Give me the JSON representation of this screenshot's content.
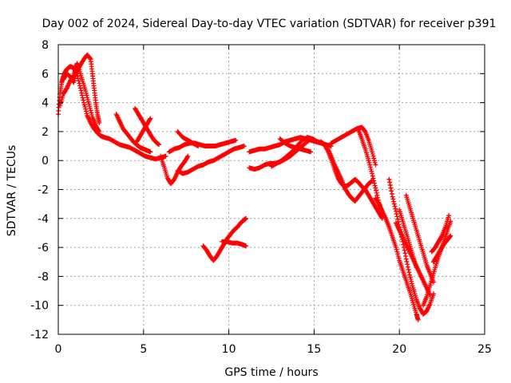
{
  "chart_data": {
    "type": "scatter",
    "title": "Day 002 of 2024, Sidereal Day-to-day VTEC variation (SDTVAR) for receiver p391",
    "xlabel": "GPS time / hours",
    "ylabel": "SDTVAR / TECUs",
    "xlim": [
      0,
      25
    ],
    "ylim": [
      -12,
      8
    ],
    "xticks": [
      "0",
      "5",
      "10",
      "15",
      "20",
      "25"
    ],
    "yticks": [
      "-12",
      "-10",
      "-8",
      "-6",
      "-4",
      "-2",
      "0",
      "2",
      "4",
      "6",
      "8"
    ],
    "grid": true,
    "legend": "none",
    "marker": "plus",
    "color": "#ff0000",
    "series": [
      {
        "x": [
          0.0,
          0.1,
          0.2,
          0.3,
          0.4,
          0.5,
          0.7,
          0.9,
          1.1,
          1.3,
          1.5,
          1.7,
          1.9,
          2.1,
          2.3,
          2.5,
          2.7,
          3.0,
          3.3,
          3.6,
          3.9,
          4.2,
          4.5,
          4.8,
          5.1,
          5.4,
          5.7,
          6.0,
          6.3
        ],
        "y": [
          3.2,
          4.6,
          5.4,
          5.8,
          6.1,
          6.3,
          6.5,
          6.4,
          6.0,
          5.0,
          4.0,
          3.1,
          2.6,
          2.2,
          1.9,
          1.7,
          1.6,
          1.5,
          1.3,
          1.1,
          1.0,
          0.9,
          0.7,
          0.5,
          0.3,
          0.2,
          0.1,
          0.2,
          0.3
        ]
      },
      {
        "x": [
          0.3,
          0.5,
          0.7,
          0.9,
          1.1,
          1.3,
          1.5,
          1.7,
          1.9,
          2.0,
          2.1,
          2.2,
          2.3,
          2.4
        ],
        "y": [
          5.6,
          6.0,
          5.8,
          5.4,
          6.2,
          6.6,
          7.0,
          7.3,
          7.0,
          6.0,
          5.0,
          4.0,
          3.2,
          2.6
        ]
      },
      {
        "x": [
          0.1,
          0.3,
          0.5,
          0.7,
          0.9,
          1.0,
          1.1,
          1.2,
          1.4,
          1.6,
          1.8,
          2.0,
          2.2,
          2.4
        ],
        "y": [
          3.8,
          4.6,
          5.0,
          5.5,
          5.8,
          6.3,
          6.7,
          6.4,
          5.6,
          4.8,
          3.9,
          3.0,
          2.4,
          2.0
        ]
      },
      {
        "x": [
          3.4,
          3.6,
          3.8,
          4.0,
          4.2,
          4.4,
          4.6,
          4.8,
          5.0,
          5.2,
          5.4
        ],
        "y": [
          3.2,
          2.7,
          2.2,
          1.9,
          1.6,
          1.3,
          1.1,
          0.9,
          0.8,
          0.7,
          0.6
        ]
      },
      {
        "x": [
          4.5,
          4.7,
          4.9,
          5.1,
          5.3,
          5.5,
          5.7,
          5.9
        ],
        "y": [
          3.6,
          3.2,
          2.8,
          2.4,
          2.0,
          1.6,
          1.3,
          1.1
        ]
      },
      {
        "x": [
          4.6,
          4.8,
          5.0,
          5.2,
          5.4
        ],
        "y": [
          1.3,
          1.7,
          2.1,
          2.5,
          2.9
        ]
      },
      {
        "x": [
          6.0,
          6.2,
          6.4,
          6.6,
          6.8,
          7.0,
          7.2,
          7.4,
          7.6
        ],
        "y": [
          0.3,
          -0.4,
          -1.2,
          -1.6,
          -1.3,
          -0.8,
          -0.4,
          -0.1,
          0.3
        ]
      },
      {
        "x": [
          6.5,
          6.8,
          7.1,
          7.4,
          7.7,
          8.0,
          8.3,
          8.6,
          8.9,
          9.2,
          9.5,
          9.8,
          10.1,
          10.4
        ],
        "y": [
          0.6,
          0.8,
          0.9,
          1.1,
          1.2,
          1.2,
          1.1,
          1.0,
          1.0,
          1.0,
          1.1,
          1.2,
          1.3,
          1.4
        ]
      },
      {
        "x": [
          7.0,
          7.3,
          7.6,
          7.9,
          8.2,
          8.5,
          8.8,
          9.1,
          9.4,
          9.7,
          10.0,
          10.3,
          10.6,
          10.9
        ],
        "y": [
          -0.7,
          -0.9,
          -0.8,
          -0.6,
          -0.4,
          -0.3,
          -0.1,
          0.0,
          0.2,
          0.4,
          0.6,
          0.8,
          0.9,
          1.0
        ]
      },
      {
        "x": [
          7.0,
          7.3,
          7.6,
          7.9,
          8.2
        ],
        "y": [
          2.0,
          1.6,
          1.4,
          1.2,
          1.0
        ]
      },
      {
        "x": [
          8.5,
          8.7,
          8.9,
          9.1,
          9.3,
          9.5,
          9.7,
          9.9,
          10.1,
          10.3,
          10.5,
          10.7,
          10.9,
          11.0
        ],
        "y": [
          -5.9,
          -6.2,
          -6.6,
          -6.9,
          -6.6,
          -6.2,
          -5.8,
          -5.4,
          -5.1,
          -4.8,
          -4.6,
          -4.3,
          -4.1,
          -4.0
        ]
      },
      {
        "x": [
          9.6,
          9.9,
          10.2,
          10.5,
          10.8,
          11.0
        ],
        "y": [
          -5.6,
          -5.6,
          -5.7,
          -5.7,
          -5.8,
          -5.9
        ]
      },
      {
        "x": [
          11.2,
          11.5,
          11.8,
          12.1,
          12.4,
          12.7,
          13.0,
          13.3,
          13.6,
          13.9,
          14.2,
          14.5,
          14.8,
          15.1,
          15.4,
          15.7,
          16.0
        ],
        "y": [
          0.6,
          0.7,
          0.8,
          0.8,
          0.9,
          1.0,
          1.1,
          1.3,
          1.4,
          1.5,
          1.6,
          1.5,
          1.4,
          1.3,
          1.2,
          1.1,
          1.0
        ]
      },
      {
        "x": [
          11.2,
          11.5,
          11.8,
          12.1,
          12.4,
          12.7,
          13.0,
          13.3,
          13.6,
          13.9,
          14.2,
          14.5,
          14.8
        ],
        "y": [
          -0.5,
          -0.6,
          -0.5,
          -0.3,
          -0.2,
          -0.2,
          -0.1,
          0.1,
          0.3,
          0.6,
          0.9,
          1.2,
          1.5
        ]
      },
      {
        "x": [
          12.5,
          12.8,
          13.1,
          13.4,
          13.7,
          14.0,
          14.3,
          14.6,
          14.9,
          15.2,
          15.5
        ],
        "y": [
          -0.4,
          -0.2,
          0.0,
          0.3,
          0.6,
          1.0,
          1.4,
          1.6,
          1.5,
          1.3,
          1.2
        ]
      },
      {
        "x": [
          13.0,
          13.3,
          13.6,
          13.9,
          14.2,
          14.5,
          14.8
        ],
        "y": [
          1.5,
          1.2,
          1.0,
          0.9,
          0.8,
          0.7,
          0.6
        ]
      },
      {
        "x": [
          15.4,
          15.6,
          15.8,
          16.0,
          16.2,
          16.4,
          16.6,
          16.8,
          17.0,
          17.2,
          17.4,
          17.6,
          17.8,
          18.0,
          18.2,
          18.4,
          18.6,
          18.8,
          19.0
        ],
        "y": [
          1.3,
          1.1,
          0.7,
          0.1,
          -0.6,
          -1.2,
          -1.6,
          -1.8,
          -1.7,
          -1.5,
          -1.3,
          -1.5,
          -1.8,
          -2.0,
          -2.4,
          -2.8,
          -3.2,
          -3.6,
          -4.0
        ]
      },
      {
        "x": [
          15.8,
          16.0,
          16.2,
          16.4,
          16.6,
          16.8,
          17.0,
          17.2,
          17.4,
          17.6,
          17.8,
          18.0,
          18.2,
          18.4
        ],
        "y": [
          0.8,
          0.3,
          -0.3,
          -0.8,
          -1.3,
          -1.9,
          -2.3,
          -2.6,
          -2.8,
          -2.5,
          -2.2,
          -1.9,
          -1.6,
          -1.4
        ]
      },
      {
        "x": [
          16.0,
          16.3,
          16.6,
          16.9,
          17.2,
          17.5,
          17.8,
          18.0,
          18.2,
          18.4,
          18.6
        ],
        "y": [
          1.2,
          1.4,
          1.6,
          1.8,
          2.0,
          2.2,
          2.3,
          2.0,
          1.4,
          0.6,
          -0.3
        ]
      },
      {
        "x": [
          17.6,
          17.8,
          18.0,
          18.2,
          18.4,
          18.6,
          18.8,
          19.0
        ],
        "y": [
          2.1,
          1.5,
          0.8,
          0.0,
          -0.9,
          -1.9,
          -2.9,
          -3.6
        ]
      },
      {
        "x": [
          18.6,
          18.8,
          19.0,
          19.2,
          19.4,
          19.6,
          19.8,
          20.0,
          20.2,
          20.4,
          20.6,
          20.8,
          21.0,
          21.1
        ],
        "y": [
          -2.6,
          -3.0,
          -3.5,
          -4.0,
          -4.6,
          -5.3,
          -6.0,
          -6.9,
          -7.6,
          -8.3,
          -9.0,
          -9.8,
          -10.6,
          -11.0
        ]
      },
      {
        "x": [
          19.4,
          19.6,
          19.8,
          20.0,
          20.2,
          20.4,
          20.6,
          20.8,
          21.0,
          21.2,
          21.4,
          21.6,
          21.8,
          22.0
        ],
        "y": [
          -1.3,
          -2.5,
          -3.5,
          -4.6,
          -5.6,
          -6.8,
          -7.9,
          -8.8,
          -9.6,
          -10.2,
          -10.6,
          -10.4,
          -9.9,
          -9.2
        ]
      },
      {
        "x": [
          19.8,
          20.0,
          20.2,
          20.4,
          20.6,
          20.8,
          21.0,
          21.2,
          21.4,
          21.6,
          21.8
        ],
        "y": [
          -4.3,
          -4.8,
          -5.3,
          -5.8,
          -6.3,
          -6.8,
          -7.3,
          -7.8,
          -8.3,
          -8.8,
          -9.3
        ]
      },
      {
        "x": [
          20.4,
          20.6,
          20.8,
          21.0,
          21.2,
          21.4,
          21.6,
          21.8,
          22.0
        ],
        "y": [
          -2.4,
          -3.2,
          -4.0,
          -4.8,
          -5.6,
          -6.4,
          -7.2,
          -7.8,
          -8.4
        ]
      },
      {
        "x": [
          20.0,
          20.2,
          20.4,
          20.6,
          20.8,
          21.0
        ],
        "y": [
          -3.4,
          -4.2,
          -5.0,
          -5.8,
          -6.6,
          -7.4
        ]
      },
      {
        "x": [
          21.4,
          21.6,
          21.8,
          22.0,
          22.2,
          22.4,
          22.6,
          22.8,
          23.0
        ],
        "y": [
          -10.0,
          -9.4,
          -8.6,
          -7.8,
          -7.0,
          -6.3,
          -5.6,
          -4.9,
          -4.2
        ]
      },
      {
        "x": [
          22.0,
          22.2,
          22.4,
          22.6,
          22.8,
          23.0
        ],
        "y": [
          -7.0,
          -6.6,
          -6.2,
          -5.8,
          -5.5,
          -5.2
        ]
      },
      {
        "x": [
          21.9,
          22.1,
          22.3,
          22.5,
          22.7,
          22.9
        ],
        "y": [
          -6.3,
          -6.0,
          -5.6,
          -5.2,
          -4.6,
          -3.8
        ]
      }
    ]
  }
}
